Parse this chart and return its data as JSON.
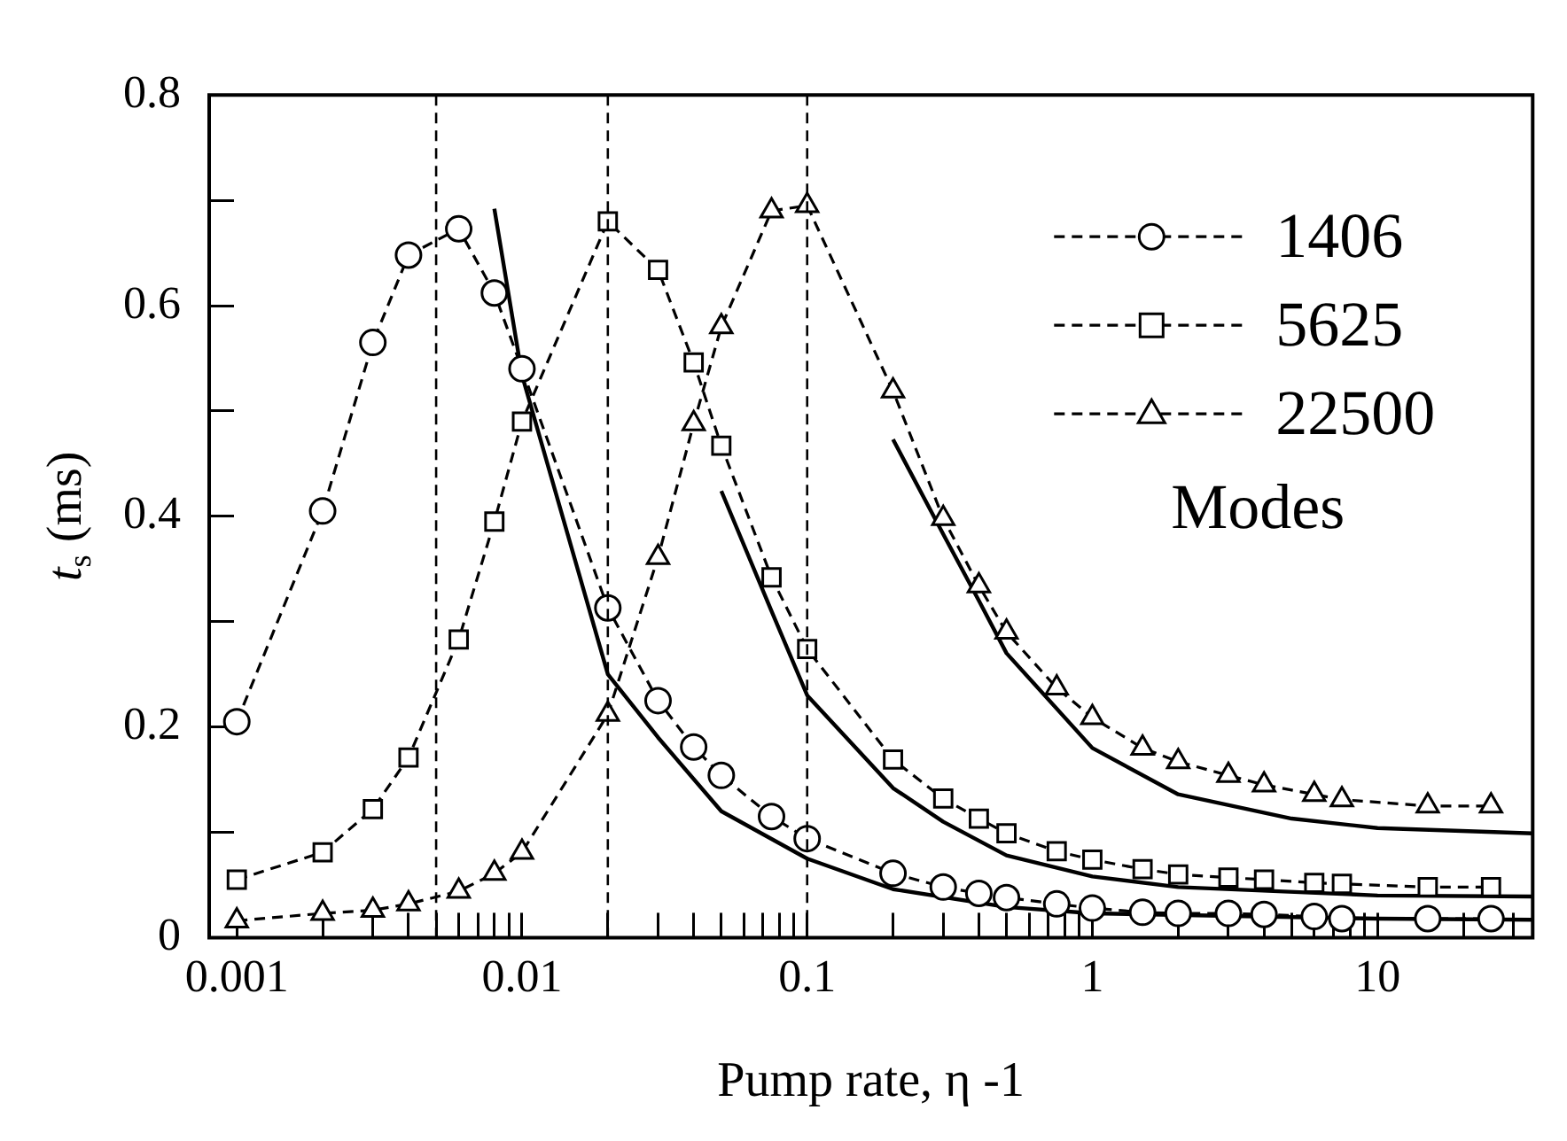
{
  "chart_data": {
    "type": "line",
    "xlabel": "Pump rate, η -1",
    "ylabel": "t$_{s}$ (ms)",
    "legend_title": "Modes",
    "log": "x",
    "grid": false,
    "legend": "top right",
    "xlim": [
      0.0008,
      35
    ],
    "ylim": [
      0,
      0.8
    ],
    "xticks": [
      0.001,
      {
        "value": 0.002,
        "label": null
      },
      {
        "value": 0.003,
        "label": null
      },
      {
        "value": 0.004,
        "label": null
      },
      {
        "value": 0.005,
        "label": null
      },
      {
        "value": 0.006,
        "label": null
      },
      {
        "value": 0.007,
        "label": null
      },
      {
        "value": 0.008,
        "label": null
      },
      {
        "value": 0.009,
        "label": null
      },
      0.01,
      {
        "value": 0.02,
        "label": null
      },
      {
        "value": 0.03,
        "label": null
      },
      {
        "value": 0.04,
        "label": null
      },
      {
        "value": 0.05,
        "label": null
      },
      {
        "value": 0.06,
        "label": null
      },
      {
        "value": 0.07,
        "label": null
      },
      {
        "value": 0.08,
        "label": null
      },
      {
        "value": 0.09,
        "label": null
      },
      0.1,
      {
        "value": 0.2,
        "label": null
      },
      {
        "value": 0.3,
        "label": null
      },
      {
        "value": 0.4,
        "label": null
      },
      {
        "value": 0.5,
        "label": null
      },
      {
        "value": 0.6,
        "label": null
      },
      {
        "value": 0.7,
        "label": null
      },
      {
        "value": 0.8,
        "label": null
      },
      {
        "value": 0.9,
        "label": null
      },
      1,
      {
        "value": 2,
        "label": null
      },
      {
        "value": 3,
        "label": null
      },
      {
        "value": 4,
        "label": null
      },
      {
        "value": 5,
        "label": null
      },
      {
        "value": 6,
        "label": null
      },
      {
        "value": 7,
        "label": null
      },
      {
        "value": 8,
        "label": null
      },
      {
        "value": 9,
        "label": null
      },
      10,
      {
        "value": 20,
        "label": null
      },
      {
        "value": 30,
        "label": null
      }
    ],
    "yticks": [
      0,
      {
        "value": 0.1,
        "label": null
      },
      0.2,
      {
        "value": 0.3,
        "label": null
      },
      0.4,
      {
        "value": 0.5,
        "label": null
      },
      0.6,
      {
        "value": 0.7,
        "label": null
      },
      0.8
    ],
    "ref_lines": [
      {
        "axis": "x",
        "value": 0.005,
        "line_style": "dashed"
      },
      {
        "axis": "x",
        "value": 0.02,
        "line_style": "dashed"
      },
      {
        "axis": "x",
        "value": 0.1,
        "line_style": "dashed"
      }
    ],
    "series": [
      {
        "name": "1406",
        "color": "#000000",
        "marker": "circle",
        "line_style": "dashed",
        "x": [
          0.001,
          0.002,
          0.003,
          0.004,
          0.006,
          0.008,
          0.01,
          0.02,
          0.03,
          0.04,
          0.05,
          0.075,
          0.1,
          0.2,
          0.3,
          0.4,
          0.5,
          0.75,
          1,
          1.5,
          2,
          3,
          4,
          6,
          7.5,
          15,
          25
        ],
        "values": [
          0.205,
          0.405,
          0.565,
          0.648,
          0.673,
          0.612,
          0.54,
          0.313,
          0.225,
          0.181,
          0.154,
          0.115,
          0.094,
          0.061,
          0.048,
          0.042,
          0.038,
          0.032,
          0.028,
          0.024,
          0.023,
          0.023,
          0.022,
          0.02,
          0.018,
          0.018,
          0.018
        ]
      },
      {
        "name": "5625",
        "color": "#000000",
        "marker": "square",
        "line_style": "dashed",
        "x": [
          0.001,
          0.002,
          0.003,
          0.004,
          0.006,
          0.008,
          0.01,
          0.02,
          0.03,
          0.04,
          0.05,
          0.075,
          0.1,
          0.2,
          0.3,
          0.4,
          0.5,
          0.75,
          1,
          1.5,
          2,
          3,
          4,
          6,
          7.5,
          15,
          25
        ],
        "values": [
          0.055,
          0.081,
          0.122,
          0.171,
          0.283,
          0.395,
          0.49,
          0.68,
          0.634,
          0.546,
          0.467,
          0.342,
          0.274,
          0.169,
          0.132,
          0.113,
          0.099,
          0.082,
          0.074,
          0.065,
          0.06,
          0.057,
          0.055,
          0.052,
          0.051,
          0.048,
          0.048
        ]
      },
      {
        "name": "22500",
        "color": "#000000",
        "marker": "triangle",
        "line_style": "dashed",
        "x": [
          0.001,
          0.002,
          0.003,
          0.004,
          0.006,
          0.008,
          0.01,
          0.02,
          0.03,
          0.04,
          0.05,
          0.075,
          0.1,
          0.2,
          0.3,
          0.4,
          0.5,
          0.75,
          1,
          1.5,
          2,
          3,
          4,
          6,
          7.5,
          15,
          25
        ],
        "values": [
          0.016,
          0.023,
          0.026,
          0.032,
          0.044,
          0.061,
          0.081,
          0.212,
          0.361,
          0.488,
          0.58,
          0.69,
          0.695,
          0.519,
          0.398,
          0.334,
          0.29,
          0.237,
          0.209,
          0.18,
          0.167,
          0.154,
          0.145,
          0.136,
          0.131,
          0.125,
          0.125
        ]
      },
      {
        "color": "#000000",
        "marker": "none",
        "line_style": "solid",
        "x": [
          0.008,
          0.01,
          0.02,
          0.03,
          0.05,
          0.1,
          0.2,
          0.5,
          1,
          10,
          35
        ],
        "values": [
          0.692,
          0.534,
          0.25,
          0.19,
          0.12,
          0.075,
          0.046,
          0.029,
          0.023,
          0.018,
          0.017
        ]
      },
      {
        "color": "#000000",
        "marker": "none",
        "line_style": "solid",
        "x": [
          0.05,
          0.075,
          0.1,
          0.2,
          0.3,
          0.5,
          1,
          2,
          10,
          35
        ],
        "values": [
          0.424,
          0.31,
          0.23,
          0.142,
          0.11,
          0.078,
          0.058,
          0.048,
          0.04,
          0.039
        ]
      },
      {
        "color": "#000000",
        "marker": "none",
        "line_style": "solid",
        "x": [
          0.2,
          0.3,
          0.4,
          0.5,
          1,
          2,
          5,
          10,
          35
        ],
        "values": [
          0.473,
          0.383,
          0.32,
          0.27,
          0.18,
          0.136,
          0.113,
          0.104,
          0.099
        ]
      }
    ]
  }
}
